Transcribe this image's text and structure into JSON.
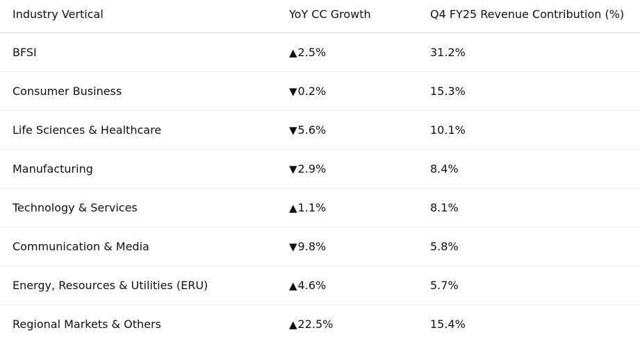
{
  "table": {
    "headers": {
      "vertical": "Industry Vertical",
      "growth": "YoY CC Growth",
      "contribution": "Q4 FY25 Revenue Contribution (%)"
    },
    "rows": [
      {
        "vertical": "BFSI",
        "arrow": "▲",
        "growth": "2.5%",
        "contribution": "31.2%"
      },
      {
        "vertical": "Consumer Business",
        "arrow": "▼",
        "growth": "0.2%",
        "contribution": "15.3%"
      },
      {
        "vertical": "Life Sciences & Healthcare",
        "arrow": "▼",
        "growth": "5.6%",
        "contribution": "10.1%"
      },
      {
        "vertical": "Manufacturing",
        "arrow": "▼",
        "growth": "2.9%",
        "contribution": "8.4%"
      },
      {
        "vertical": "Technology & Services",
        "arrow": "▲",
        "growth": "1.1%",
        "contribution": "8.1%"
      },
      {
        "vertical": "Communication & Media",
        "arrow": "▼",
        "growth": "9.8%",
        "contribution": "5.8%"
      },
      {
        "vertical": "Energy, Resources & Utilities (ERU)",
        "arrow": "▲",
        "growth": "4.6%",
        "contribution": "5.7%"
      },
      {
        "vertical": "Regional Markets & Others",
        "arrow": "▲",
        "growth": "22.5%",
        "contribution": "15.4%"
      }
    ]
  }
}
